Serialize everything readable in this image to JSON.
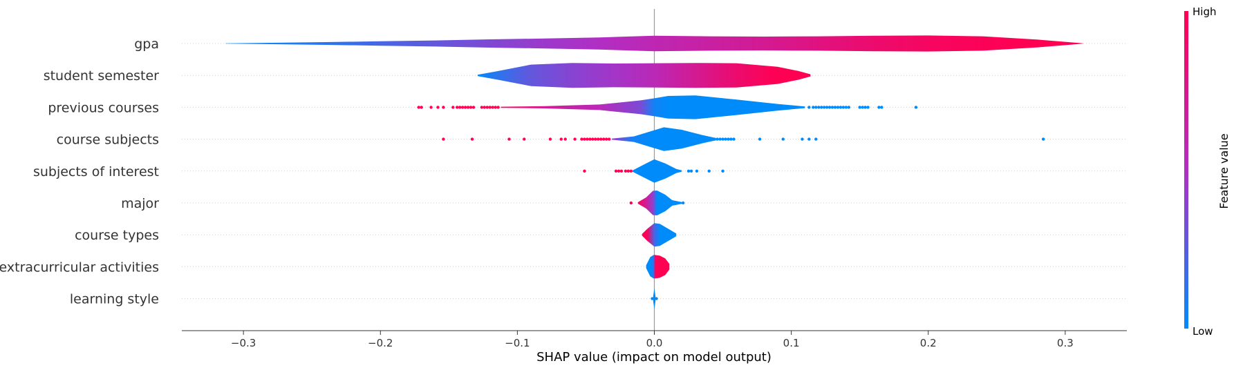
{
  "colors": {
    "low": "#008bfb",
    "high": "#ff0052",
    "axis": "#333333",
    "zero_line": "#999999",
    "row_line": "#cccccc"
  },
  "chart_data": {
    "type": "violin",
    "xlabel": "SHAP value (impact on model output)",
    "xlim": [
      -0.345,
      0.345
    ],
    "xticks": [
      -0.3,
      -0.2,
      -0.1,
      0.0,
      0.1,
      0.2,
      0.3
    ],
    "xtick_labels": [
      "−0.3",
      "−0.2",
      "−0.1",
      "0.0",
      "0.1",
      "0.2",
      "0.3"
    ],
    "grid": false,
    "colorbar": {
      "label": "Feature value",
      "high_label": "High",
      "low_label": "Low"
    },
    "features": [
      {
        "name": "gpa",
        "body": [
          [
            -0.313,
            0.01,
            0.0
          ],
          [
            -0.28,
            0.05,
            0.05
          ],
          [
            -0.24,
            0.1,
            0.12
          ],
          [
            -0.2,
            0.16,
            0.2
          ],
          [
            -0.16,
            0.22,
            0.28
          ],
          [
            -0.12,
            0.3,
            0.36
          ],
          [
            -0.08,
            0.36,
            0.44
          ],
          [
            -0.04,
            0.44,
            0.5
          ],
          [
            0.0,
            0.56,
            0.58
          ],
          [
            0.04,
            0.52,
            0.65
          ],
          [
            0.08,
            0.5,
            0.72
          ],
          [
            0.12,
            0.52,
            0.8
          ],
          [
            0.16,
            0.56,
            0.88
          ],
          [
            0.2,
            0.58,
            0.94
          ],
          [
            0.24,
            0.52,
            0.98
          ],
          [
            0.28,
            0.28,
            1.0
          ],
          [
            0.313,
            0.01,
            1.0
          ]
        ],
        "dots": []
      },
      {
        "name": "student semester",
        "body": [
          [
            -0.129,
            0.05,
            0.0
          ],
          [
            -0.115,
            0.3,
            0.12
          ],
          [
            -0.09,
            0.78,
            0.28
          ],
          [
            -0.06,
            0.9,
            0.38
          ],
          [
            -0.03,
            0.86,
            0.46
          ],
          [
            0.0,
            0.88,
            0.56
          ],
          [
            0.03,
            0.9,
            0.72
          ],
          [
            0.06,
            0.88,
            0.88
          ],
          [
            0.09,
            0.62,
            1.0
          ],
          [
            0.105,
            0.32,
            1.0
          ],
          [
            0.114,
            0.08,
            1.0
          ]
        ],
        "dots": []
      },
      {
        "name": "previous courses",
        "body": [
          [
            -0.112,
            0.04,
            0.92
          ],
          [
            -0.08,
            0.08,
            0.72
          ],
          [
            -0.04,
            0.2,
            0.55
          ],
          [
            -0.01,
            0.5,
            0.35
          ],
          [
            0.0,
            0.65,
            0.05
          ],
          [
            0.01,
            0.82,
            0.0
          ],
          [
            0.03,
            0.86,
            0.0
          ],
          [
            0.06,
            0.56,
            0.0
          ],
          [
            0.09,
            0.24,
            0.0
          ],
          [
            0.11,
            0.06,
            0.0
          ]
        ],
        "dots": [
          [
            -0.172,
            1
          ],
          [
            -0.17,
            1
          ],
          [
            -0.163,
            1
          ],
          [
            -0.158,
            1
          ],
          [
            -0.154,
            1
          ],
          [
            -0.147,
            1
          ],
          [
            -0.144,
            1
          ],
          [
            -0.142,
            1
          ],
          [
            -0.14,
            1
          ],
          [
            -0.138,
            1
          ],
          [
            -0.136,
            1
          ],
          [
            -0.134,
            1
          ],
          [
            -0.132,
            1
          ],
          [
            -0.126,
            1
          ],
          [
            -0.124,
            1
          ],
          [
            -0.122,
            1
          ],
          [
            -0.12,
            1
          ],
          [
            -0.118,
            1
          ],
          [
            -0.116,
            1
          ],
          [
            -0.114,
            1
          ],
          [
            0.113,
            0
          ],
          [
            0.116,
            0
          ],
          [
            0.118,
            0
          ],
          [
            0.12,
            0
          ],
          [
            0.122,
            0
          ],
          [
            0.124,
            0
          ],
          [
            0.126,
            0
          ],
          [
            0.128,
            0
          ],
          [
            0.13,
            0
          ],
          [
            0.132,
            0
          ],
          [
            0.134,
            0
          ],
          [
            0.136,
            0
          ],
          [
            0.138,
            0
          ],
          [
            0.14,
            0
          ],
          [
            0.142,
            0
          ],
          [
            0.15,
            0
          ],
          [
            0.152,
            0
          ],
          [
            0.154,
            0
          ],
          [
            0.156,
            0
          ],
          [
            0.164,
            0
          ],
          [
            0.166,
            0
          ],
          [
            0.191,
            0
          ]
        ]
      },
      {
        "name": "course subjects",
        "body": [
          [
            -0.031,
            0.04,
            0.45
          ],
          [
            -0.015,
            0.2,
            0.05
          ],
          [
            0.0,
            0.65,
            0.0
          ],
          [
            0.007,
            0.86,
            0.0
          ],
          [
            0.02,
            0.68,
            0.0
          ],
          [
            0.035,
            0.3,
            0.0
          ],
          [
            0.045,
            0.08,
            0.0
          ]
        ],
        "dots": [
          [
            -0.154,
            1
          ],
          [
            -0.133,
            1
          ],
          [
            -0.106,
            1
          ],
          [
            -0.095,
            1
          ],
          [
            -0.076,
            1
          ],
          [
            -0.068,
            1
          ],
          [
            -0.065,
            1
          ],
          [
            -0.058,
            1
          ],
          [
            -0.053,
            1
          ],
          [
            -0.051,
            1
          ],
          [
            -0.049,
            1
          ],
          [
            -0.047,
            1
          ],
          [
            -0.045,
            1
          ],
          [
            -0.043,
            1
          ],
          [
            -0.041,
            1
          ],
          [
            -0.039,
            1
          ],
          [
            -0.037,
            1
          ],
          [
            -0.035,
            1
          ],
          [
            -0.033,
            1
          ],
          [
            0.042,
            0
          ],
          [
            0.044,
            0
          ],
          [
            0.046,
            0
          ],
          [
            0.048,
            0
          ],
          [
            0.05,
            0
          ],
          [
            0.052,
            0
          ],
          [
            0.054,
            0
          ],
          [
            0.056,
            0
          ],
          [
            0.058,
            0
          ],
          [
            0.077,
            0
          ],
          [
            0.094,
            0
          ],
          [
            0.108,
            0
          ],
          [
            0.113,
            0
          ],
          [
            0.118,
            0
          ],
          [
            0.284,
            0
          ]
        ]
      },
      {
        "name": "subjects of interest",
        "body": [
          [
            -0.016,
            0.04,
            0.0
          ],
          [
            -0.008,
            0.45,
            0.0
          ],
          [
            0.0,
            0.85,
            0.0
          ],
          [
            0.008,
            0.55,
            0.0
          ],
          [
            0.016,
            0.15,
            0.0
          ],
          [
            0.02,
            0.05,
            0.0
          ]
        ],
        "dots": [
          [
            -0.051,
            1
          ],
          [
            -0.028,
            1
          ],
          [
            -0.026,
            1
          ],
          [
            -0.024,
            1
          ],
          [
            -0.021,
            1
          ],
          [
            -0.019,
            1
          ],
          [
            -0.017,
            1
          ],
          [
            0.025,
            0
          ],
          [
            0.027,
            0
          ],
          [
            0.031,
            0
          ],
          [
            0.04,
            0
          ],
          [
            0.05,
            0
          ]
        ]
      },
      {
        "name": "major",
        "body": [
          [
            -0.012,
            0.05,
            0.95
          ],
          [
            -0.006,
            0.4,
            0.7
          ],
          [
            -0.001,
            0.88,
            0.4
          ],
          [
            0.002,
            0.9,
            0.0
          ],
          [
            0.008,
            0.6,
            0.0
          ],
          [
            0.013,
            0.2,
            0.0
          ],
          [
            0.02,
            0.06,
            0.0
          ]
        ],
        "dots": [
          [
            -0.017,
            1
          ],
          [
            0.021,
            0
          ]
        ]
      },
      {
        "name": "course types",
        "body": [
          [
            -0.009,
            0.06,
            1.0
          ],
          [
            -0.005,
            0.45,
            0.95
          ],
          [
            0.0,
            0.85,
            0.2
          ],
          [
            0.004,
            0.8,
            0.0
          ],
          [
            0.01,
            0.45,
            0.0
          ],
          [
            0.016,
            0.1,
            0.0
          ]
        ],
        "dots": [
          [
            0.013,
            0
          ]
        ]
      },
      {
        "name": "extracurricular activities",
        "body": [
          [
            -0.006,
            0.1,
            0.0
          ],
          [
            -0.003,
            0.7,
            0.0
          ],
          [
            -0.0005,
            0.85,
            0.1
          ],
          [
            0.0005,
            0.85,
            0.95
          ],
          [
            0.004,
            0.8,
            1.0
          ],
          [
            0.008,
            0.6,
            1.0
          ],
          [
            0.011,
            0.2,
            1.0
          ]
        ],
        "dots": []
      },
      {
        "name": "learning style",
        "body": [
          [
            -0.0008,
            0.2,
            0.0
          ],
          [
            0.0,
            0.75,
            0.0
          ],
          [
            0.0008,
            0.2,
            0.0
          ]
        ],
        "dots": [
          [
            -0.0015,
            0
          ],
          [
            0.0015,
            0
          ]
        ]
      }
    ]
  }
}
